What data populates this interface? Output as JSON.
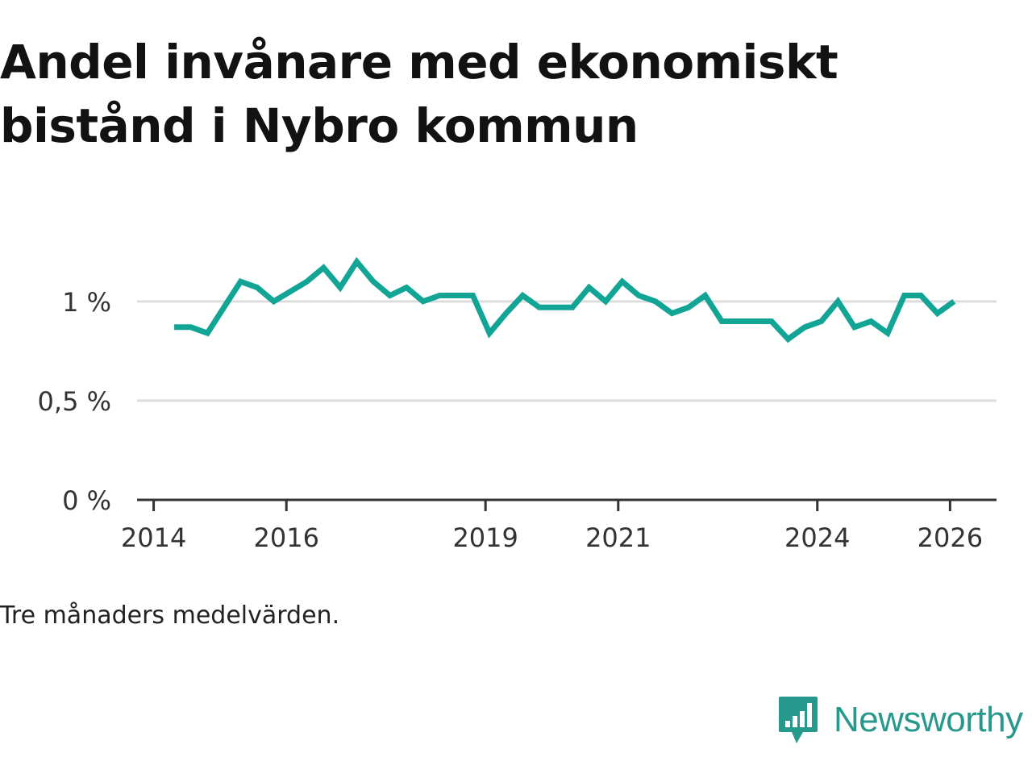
{
  "title": "Andel invånare med ekonomiskt bistånd i Nybro kommun",
  "note": "Tre månaders medelvärden.",
  "brand": {
    "name": "Newsworthy",
    "icon": "newsworthy-logo-icon",
    "color": "#27998c"
  },
  "colors": {
    "line": "#12a596",
    "grid": "#dddddd",
    "axis": "#333333"
  },
  "chart_data": {
    "type": "line",
    "title": "Andel invånare med ekonomiskt bistånd i Nybro kommun",
    "xlabel": "",
    "ylabel": "",
    "y_ticks": [
      {
        "value": 0,
        "label": "0 %"
      },
      {
        "value": 0.5,
        "label": "0,5 %"
      },
      {
        "value": 1,
        "label": "1 %"
      }
    ],
    "x_ticks": [
      {
        "value": 2014,
        "label": "2014"
      },
      {
        "value": 2016,
        "label": "2016"
      },
      {
        "value": 2019,
        "label": "2019"
      },
      {
        "value": 2021,
        "label": "2021"
      },
      {
        "value": 2024,
        "label": "2024"
      },
      {
        "value": 2026,
        "label": "2026"
      }
    ],
    "xlim": [
      2013.75,
      2026.7
    ],
    "ylim": [
      0,
      1.3
    ],
    "grid": true,
    "series": [
      {
        "name": "Andel invånare med ekonomiskt bistånd",
        "x": [
          2014.31,
          2014.56,
          2014.81,
          2015.06,
          2015.31,
          2015.56,
          2015.81,
          2016.06,
          2016.31,
          2016.56,
          2016.81,
          2017.06,
          2017.31,
          2017.56,
          2017.81,
          2018.06,
          2018.31,
          2018.56,
          2018.81,
          2019.06,
          2019.31,
          2019.56,
          2019.81,
          2020.06,
          2020.31,
          2020.56,
          2020.81,
          2021.06,
          2021.31,
          2021.56,
          2021.81,
          2022.06,
          2022.31,
          2022.56,
          2022.81,
          2023.06,
          2023.31,
          2023.56,
          2023.81,
          2024.06,
          2024.31,
          2024.56,
          2024.81,
          2025.06,
          2025.31,
          2025.56,
          2025.81,
          2026.06
        ],
        "values": [
          0.87,
          0.87,
          0.84,
          0.97,
          1.1,
          1.07,
          1.0,
          1.05,
          1.1,
          1.17,
          1.07,
          1.2,
          1.1,
          1.03,
          1.07,
          1.0,
          1.03,
          1.03,
          1.03,
          0.84,
          0.94,
          1.03,
          0.97,
          0.97,
          0.97,
          1.07,
          1.0,
          1.1,
          1.03,
          1.0,
          0.94,
          0.97,
          1.03,
          0.9,
          0.9,
          0.9,
          0.9,
          0.81,
          0.87,
          0.9,
          1.0,
          0.87,
          0.9,
          0.84,
          1.03,
          1.03,
          0.94,
          1.0
        ]
      }
    ]
  }
}
